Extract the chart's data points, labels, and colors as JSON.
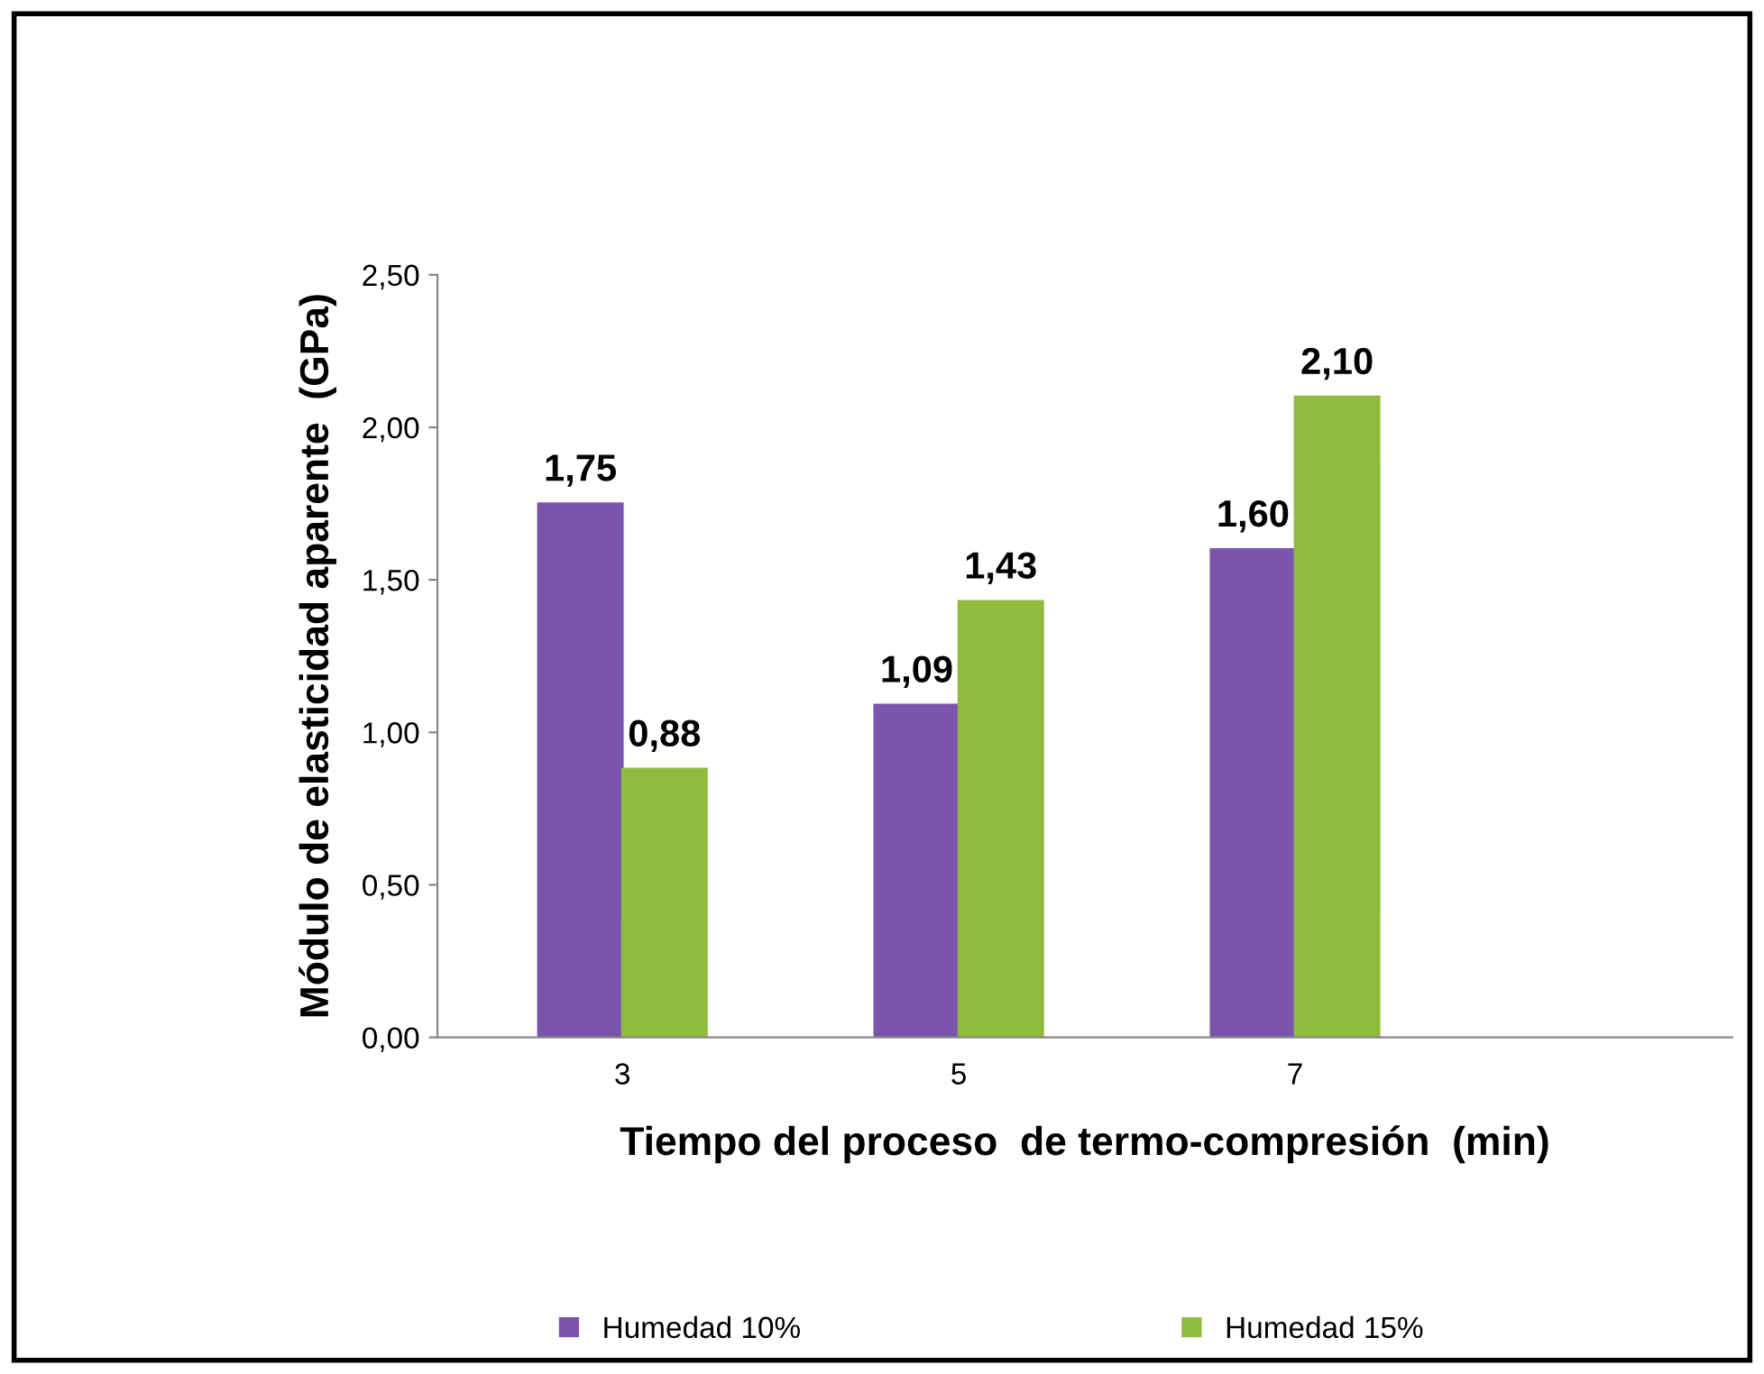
{
  "chart_data": {
    "type": "bar",
    "xlabel": "Tiempo del proceso  de termo-compresión  (min)",
    "ylabel": "Módulo de elasticidad aparente  (GPa)",
    "categories": [
      "3",
      "5",
      "7"
    ],
    "series": [
      {
        "name": "Humedad 10%",
        "color": "#7b55ad",
        "values": [
          1.75,
          1.09,
          1.6
        ],
        "value_labels": [
          "1,75",
          "1,09",
          "1,60"
        ]
      },
      {
        "name": "Humedad 15%",
        "color": "#8fbc3c",
        "values": [
          0.88,
          1.43,
          2.1
        ],
        "value_labels": [
          "0,88",
          "1,43",
          "2,10"
        ]
      }
    ],
    "ylim": [
      0,
      2.5
    ],
    "yticks": [
      {
        "value": 0,
        "label": "0,00"
      },
      {
        "value": 0.5,
        "label": "0,50"
      },
      {
        "value": 1.0,
        "label": "1,00"
      },
      {
        "value": 1.5,
        "label": "1,50"
      },
      {
        "value": 2.0,
        "label": "2,00"
      },
      {
        "value": 2.5,
        "label": "2,50"
      }
    ],
    "grid": false,
    "legend": "bottom"
  }
}
